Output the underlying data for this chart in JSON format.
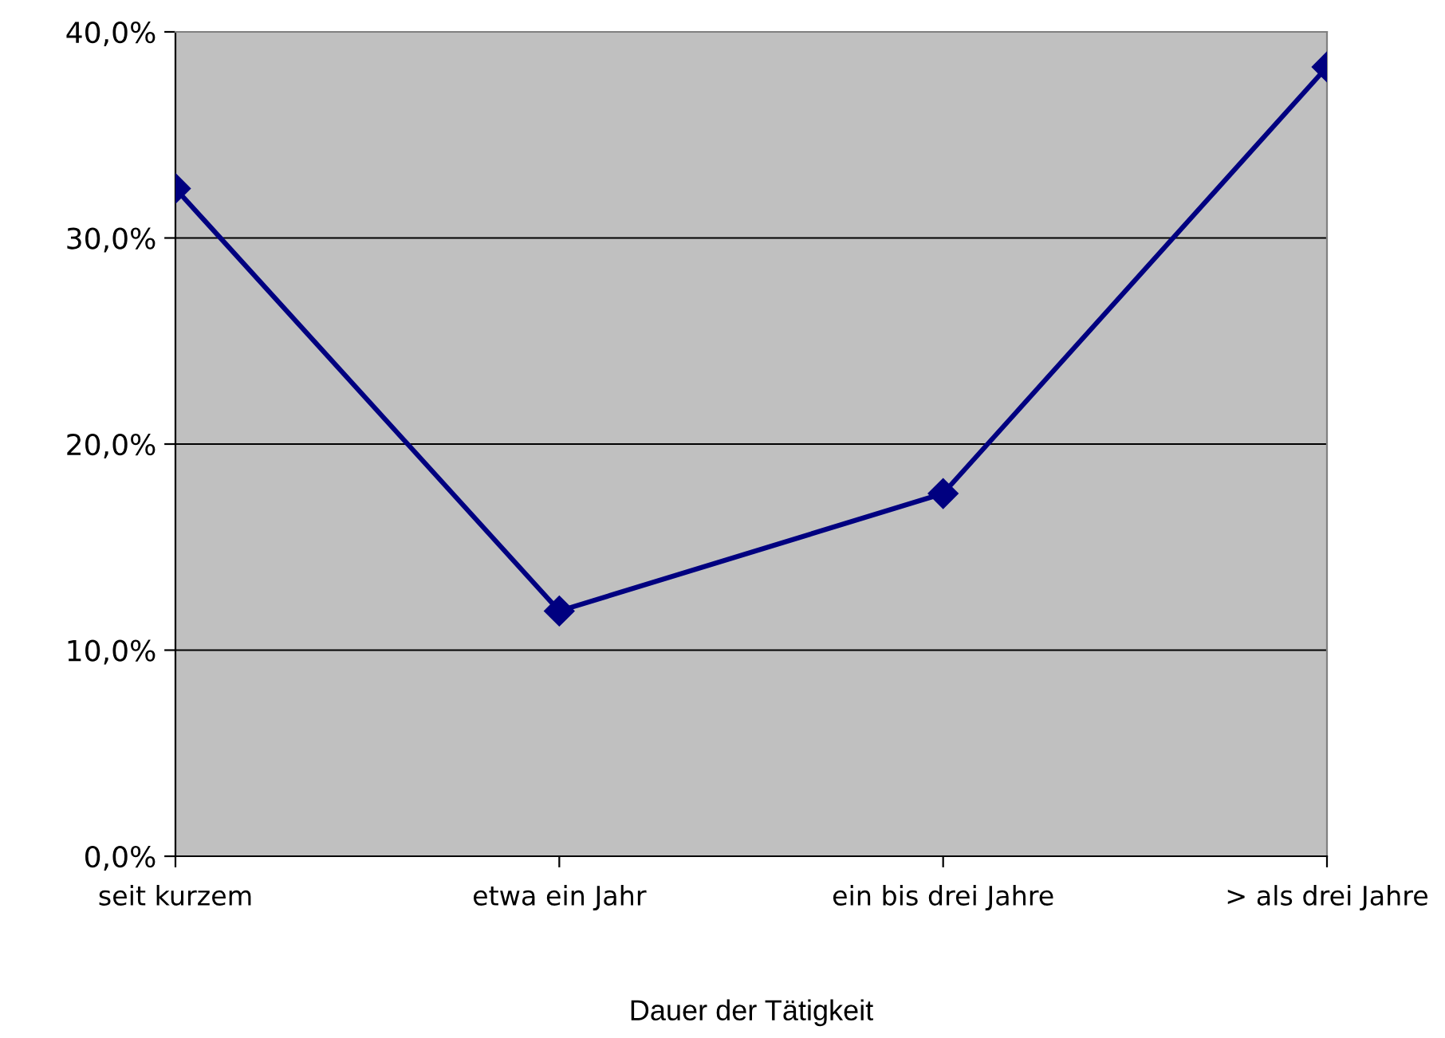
{
  "chart_data": {
    "type": "line",
    "xlabel": "Dauer der Tätigkeit",
    "categories": [
      "seit kurzem",
      "etwa ein Jahr",
      "ein bis drei Jahre",
      "> als drei Jahre"
    ],
    "series": [
      {
        "color": "#000080",
        "values": [
          32.4,
          11.9,
          17.6,
          38.3
        ]
      }
    ],
    "ylim": [
      0,
      40
    ],
    "yticks": [
      {
        "value": 0,
        "label": "0,0%"
      },
      {
        "value": 10,
        "label": "10,0%"
      },
      {
        "value": 20,
        "label": "20,0%"
      },
      {
        "value": 30,
        "label": "30,0%"
      },
      {
        "value": 40,
        "label": "40,0%"
      }
    ],
    "grid": "y",
    "marker": "diamond",
    "line_style": "solid",
    "legend": false
  }
}
